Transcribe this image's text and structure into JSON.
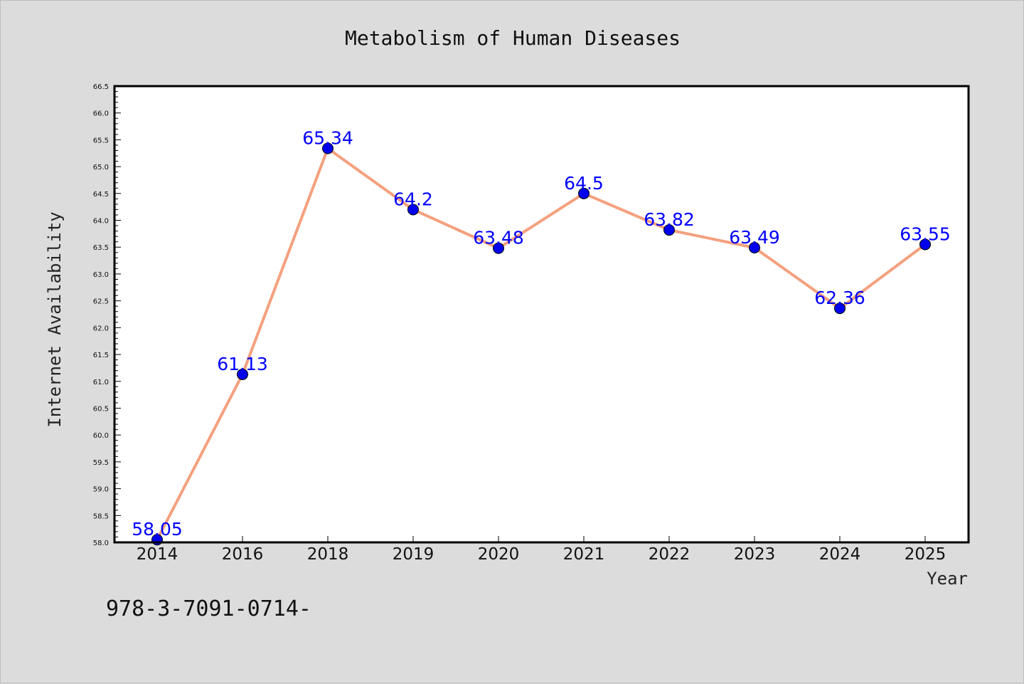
{
  "chart_data": {
    "type": "line",
    "title": "Metabolism of Human Diseases",
    "xlabel": "Year",
    "ylabel": "Internet Availability",
    "categories": [
      "2014",
      "2016",
      "2018",
      "2019",
      "2020",
      "2021",
      "2022",
      "2023",
      "2024",
      "2025"
    ],
    "series": [
      {
        "values": [
          58.05,
          61.13,
          65.34,
          64.2,
          63.48,
          64.5,
          63.82,
          63.49,
          62.36,
          63.55
        ],
        "labels": [
          "58.05",
          "61.13",
          "65.34",
          "64.2",
          "63.48",
          "64.5",
          "63.82",
          "63.49",
          "62.36",
          "63.55"
        ]
      }
    ],
    "ylim": [
      58.0,
      66.5
    ],
    "yticks": [
      "58.0",
      "58.5",
      "59.0",
      "59.5",
      "60.0",
      "60.5",
      "61.0",
      "61.5",
      "62.0",
      "62.5",
      "63.0",
      "63.5",
      "64.0",
      "64.5",
      "65.0",
      "65.5",
      "66.0",
      "66.5"
    ],
    "grid": false,
    "colors": {
      "line": "#f4a07e",
      "marker": "#0000ee",
      "label": "#0000ff",
      "background": "#dcdcdc",
      "plot": "#ffffff"
    }
  },
  "footnote": "978-3-7091-0714-"
}
